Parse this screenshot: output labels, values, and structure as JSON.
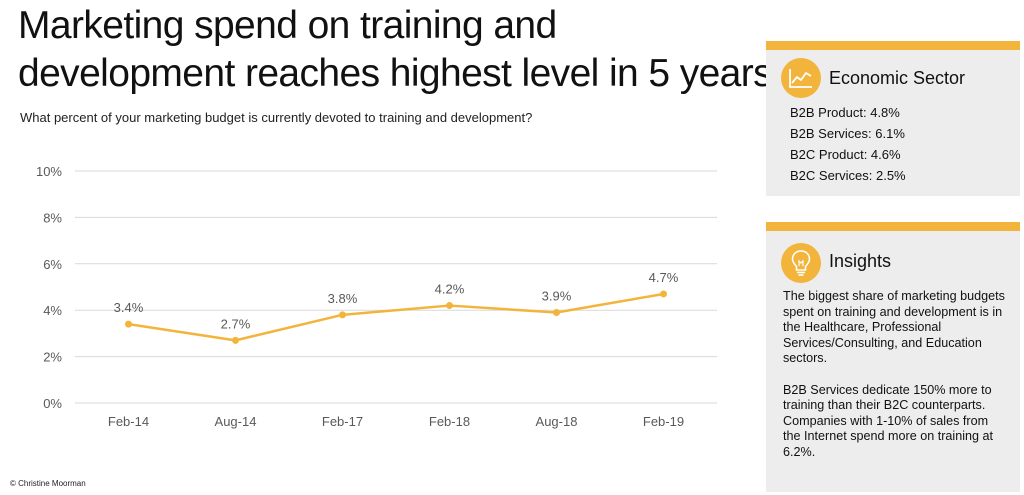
{
  "title_line1": "Marketing spend on training and",
  "title_line2": "development reaches highest level in 5 years",
  "subtitle": "What percent of your marketing budget is currently devoted to training and development?",
  "copyright": "© Christine Moorman",
  "colors": {
    "accent": "#f3b43b",
    "panel_bg": "#ededed",
    "grid": "#d9d9d9",
    "axis_text": "#595959"
  },
  "chart_data": {
    "type": "line",
    "categories": [
      "Feb-14",
      "Aug-14",
      "Feb-17",
      "Feb-18",
      "Aug-18",
      "Feb-19"
    ],
    "values": [
      3.4,
      2.7,
      3.8,
      4.2,
      3.9,
      4.7
    ],
    "data_labels": [
      "3.4%",
      "2.7%",
      "3.8%",
      "4.2%",
      "3.9%",
      "4.7%"
    ],
    "yticks": [
      "0%",
      "2%",
      "4%",
      "6%",
      "8%",
      "10%"
    ],
    "ylim": [
      0,
      10
    ],
    "grid": true,
    "legend": "none",
    "color": "#f3b43b"
  },
  "econ_panel": {
    "title": "Economic Sector",
    "icon": "line-chart-icon",
    "items": [
      "B2B Product: 4.8%",
      "B2B Services: 6.1%",
      "B2C Product: 4.6%",
      "B2C Services: 2.5%"
    ]
  },
  "insights_panel": {
    "title": "Insights",
    "icon": "lightbulb-icon",
    "paragraphs": [
      "The biggest share of marketing budgets spent on training and development is in the Healthcare, Professional Services/Consulting, and Education sectors.",
      "B2B Services dedicate 150% more to training than their B2C counterparts. Companies with 1-10% of sales from the Internet spend more on training at 6.2%."
    ]
  }
}
